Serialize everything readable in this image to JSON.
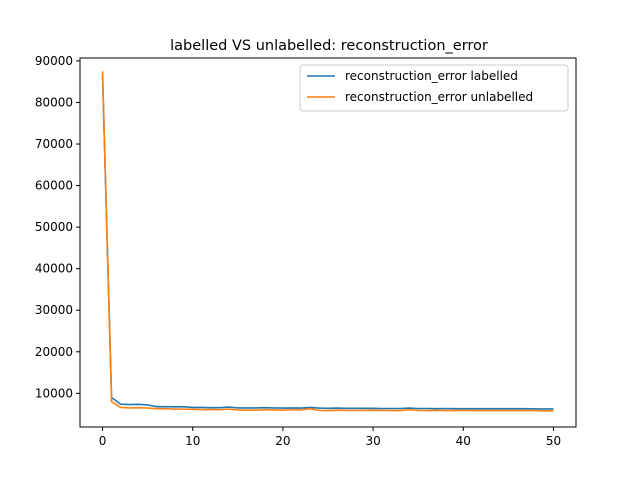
{
  "chart_data": {
    "type": "line",
    "title": "labelled VS unlabelled: reconstruction_error",
    "xlabel": "",
    "ylabel": "",
    "xlim": [
      -2.5,
      52.5
    ],
    "ylim": [
      1900,
      90700
    ],
    "xticks": [
      0,
      10,
      20,
      30,
      40,
      50
    ],
    "yticks": [
      10000,
      20000,
      30000,
      40000,
      50000,
      60000,
      70000,
      80000,
      90000
    ],
    "grid": false,
    "legend_position": "top-right",
    "series": [
      {
        "name": "reconstruction_error labelled",
        "color": "#1f77b4",
        "x": [
          0,
          1,
          2,
          3,
          4,
          5,
          6,
          7,
          8,
          9,
          10,
          11,
          12,
          13,
          14,
          15,
          16,
          17,
          18,
          19,
          20,
          21,
          22,
          23,
          24,
          25,
          26,
          27,
          28,
          29,
          30,
          31,
          32,
          33,
          34,
          35,
          36,
          37,
          38,
          39,
          40,
          41,
          42,
          43,
          44,
          45,
          46,
          47,
          48,
          49,
          50
        ],
        "values": [
          86500,
          9000,
          7400,
          7300,
          7350,
          7200,
          6800,
          6800,
          6750,
          6750,
          6600,
          6600,
          6550,
          6550,
          6700,
          6500,
          6500,
          6500,
          6550,
          6500,
          6450,
          6500,
          6450,
          6600,
          6450,
          6400,
          6450,
          6400,
          6400,
          6400,
          6400,
          6350,
          6350,
          6350,
          6450,
          6350,
          6350,
          6300,
          6350,
          6300,
          6300,
          6300,
          6300,
          6300,
          6300,
          6300,
          6300,
          6300,
          6250,
          6250,
          6250
        ]
      },
      {
        "name": "reconstruction_error unlabelled",
        "color": "#ff7f0e",
        "x": [
          0,
          1,
          2,
          3,
          4,
          5,
          6,
          7,
          8,
          9,
          10,
          11,
          12,
          13,
          14,
          15,
          16,
          17,
          18,
          19,
          20,
          21,
          22,
          23,
          24,
          25,
          26,
          27,
          28,
          29,
          30,
          31,
          32,
          33,
          34,
          35,
          36,
          37,
          38,
          39,
          40,
          41,
          42,
          43,
          44,
          45,
          46,
          47,
          48,
          49,
          50
        ],
        "values": [
          87500,
          8000,
          6600,
          6500,
          6550,
          6450,
          6300,
          6300,
          6200,
          6200,
          6150,
          6100,
          6100,
          6050,
          6200,
          6000,
          5950,
          5950,
          6050,
          6000,
          5950,
          6050,
          6000,
          6300,
          5900,
          5850,
          5950,
          5900,
          5900,
          5900,
          5950,
          5900,
          5850,
          5850,
          6050,
          5900,
          5850,
          5900,
          5850,
          5850,
          5900,
          5850,
          5850,
          5850,
          5850,
          5850,
          5850,
          5850,
          5850,
          5800,
          5800
        ]
      }
    ]
  }
}
